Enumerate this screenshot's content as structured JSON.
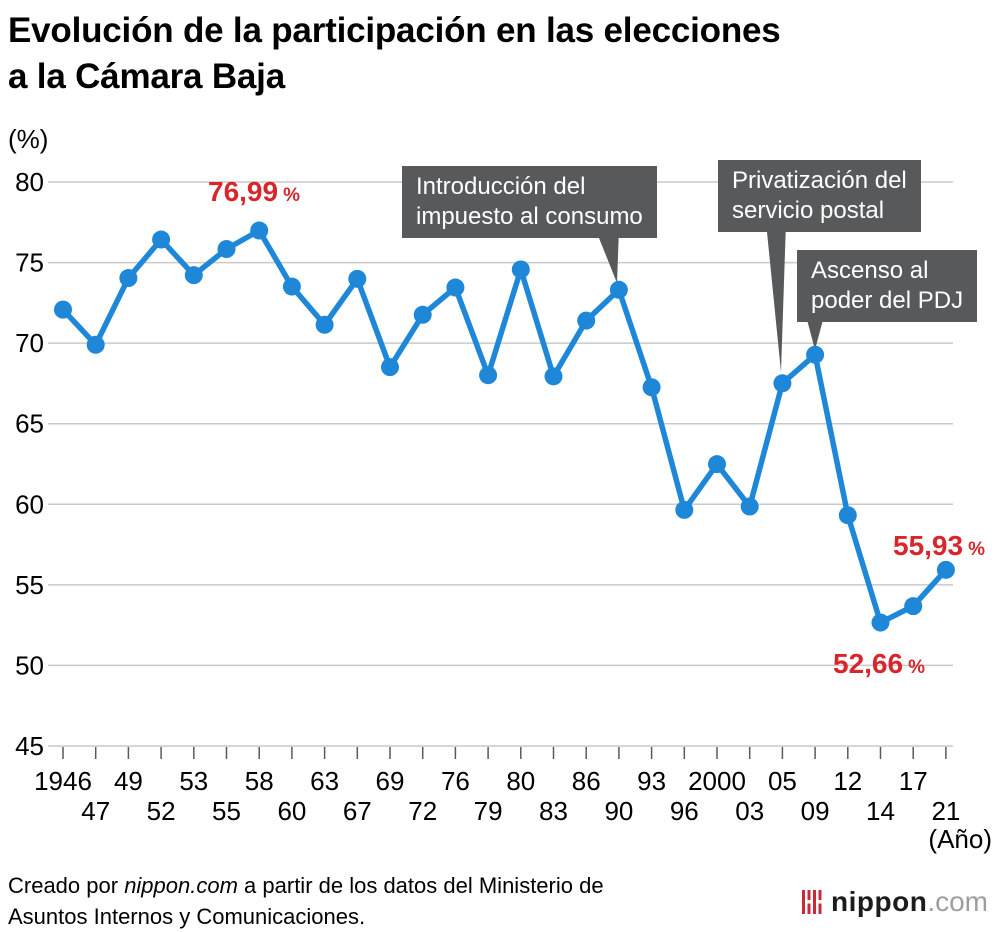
{
  "title": {
    "line1": "Evolución de la participación en las elecciones",
    "line2": "a la Cámara Baja"
  },
  "chart_data": {
    "type": "line",
    "title": "Evolución de la participación en las elecciones a la Cámara Baja",
    "y_unit": "(%)",
    "x_unit": "(Año)",
    "ylim": [
      45,
      80
    ],
    "grid": true,
    "years": [
      1946,
      1947,
      1949,
      1952,
      1953,
      1955,
      1958,
      1960,
      1963,
      1967,
      1969,
      1972,
      1976,
      1979,
      1980,
      1983,
      1986,
      1990,
      1993,
      1996,
      2000,
      2003,
      2005,
      2009,
      2012,
      2014,
      2017,
      2021
    ],
    "x_tick_labels": [
      "1946",
      "47",
      "49",
      "52",
      "53",
      "55",
      "58",
      "60",
      "63",
      "67",
      "69",
      "72",
      "76",
      "79",
      "80",
      "83",
      "86",
      "90",
      "93",
      "96",
      "2000",
      "03",
      "05",
      "09",
      "12",
      "14",
      "17",
      "21"
    ],
    "y_ticks": [
      80,
      75,
      70,
      65,
      60,
      55,
      50,
      45
    ],
    "values": [
      72.08,
      69.9,
      74.04,
      76.43,
      74.22,
      75.84,
      76.99,
      73.51,
      71.14,
      73.99,
      68.51,
      71.76,
      73.45,
      68.01,
      74.57,
      67.94,
      71.4,
      73.31,
      67.26,
      59.65,
      62.49,
      59.86,
      67.51,
      69.28,
      59.32,
      52.66,
      53.68,
      55.93
    ],
    "point_labels": [
      {
        "year": 1958,
        "value": "76,99",
        "unit": "%"
      },
      {
        "year": 2021,
        "value": "55,93",
        "unit": "%"
      },
      {
        "year": 2014,
        "value": "52,66",
        "unit": "%"
      }
    ],
    "annotations": [
      {
        "line1": "Introducción del",
        "line2": "impuesto al consumo",
        "target_year": 1990
      },
      {
        "line1": "Privatización del",
        "line2": "servicio postal",
        "target_year": 2005
      },
      {
        "line1": "Ascenso al",
        "line2": "poder del PDJ",
        "target_year": 2009
      }
    ]
  },
  "footer": {
    "line1_prefix": "Creado por ",
    "line1_italic": "nippon.com",
    "line1_suffix": " a partir de los datos del Ministerio de",
    "line2": "Asuntos Internos y Comunicaciones."
  },
  "logo": {
    "name": "nippon",
    "tld": ".com"
  },
  "colors": {
    "line_blue": "#1f87d7",
    "highlight_red": "#d7272d",
    "annotation_bg": "#58595b",
    "grid_gray": "#c9c9c9",
    "tick_gray": "#58595b",
    "logo_red": "#cc2936",
    "logo_name": "#1c1c1c",
    "logo_tld": "#9e9e9e"
  }
}
